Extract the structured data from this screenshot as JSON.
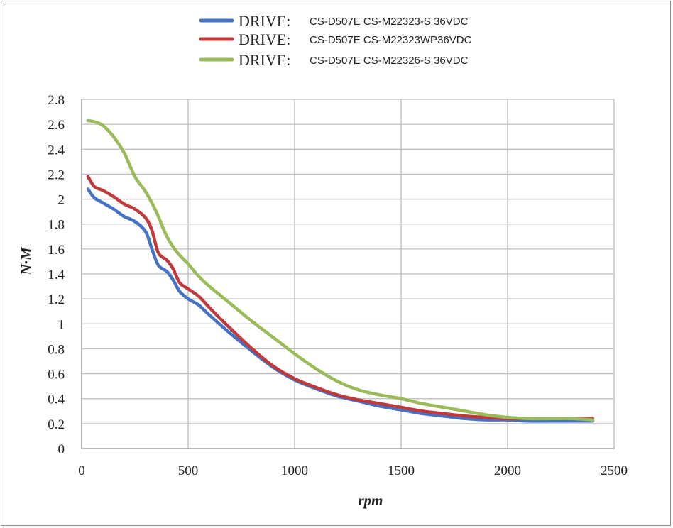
{
  "chart_data": {
    "type": "line",
    "xlabel": "rpm",
    "ylabel": "N·M",
    "xlim": [
      0,
      2500
    ],
    "ylim": [
      0,
      2.8
    ],
    "x_ticks": [
      "0",
      "500",
      "1000",
      "1500",
      "2000",
      "2500"
    ],
    "y_ticks": [
      "0",
      "0.2",
      "0.4",
      "0.6",
      "0.8",
      "1",
      "1.2",
      "1.4",
      "1.6",
      "1.8",
      "2",
      "2.2",
      "2.4",
      "2.6",
      "2.8"
    ],
    "grid": true,
    "legend_position": "top",
    "series": [
      {
        "legend_head": "DRIVE:",
        "legend_rest": "CS-D507E  CS-M22323-S  36VDC",
        "color": "#4472C4",
        "x": [
          30,
          60,
          100,
          150,
          200,
          250,
          300,
          330,
          360,
          400,
          430,
          460,
          500,
          550,
          600,
          700,
          800,
          900,
          1000,
          1100,
          1200,
          1300,
          1400,
          1500,
          1600,
          1700,
          1800,
          1900,
          2000,
          2100,
          2200,
          2300,
          2400
        ],
        "y": [
          2.08,
          2.01,
          1.97,
          1.92,
          1.86,
          1.82,
          1.74,
          1.6,
          1.47,
          1.42,
          1.35,
          1.26,
          1.2,
          1.15,
          1.07,
          0.92,
          0.78,
          0.65,
          0.55,
          0.48,
          0.42,
          0.38,
          0.34,
          0.31,
          0.28,
          0.26,
          0.24,
          0.23,
          0.23,
          0.22,
          0.22,
          0.22,
          0.22
        ]
      },
      {
        "legend_head": "DRIVE:",
        "legend_rest": "CS-D507E CS-M22323WP36VDC",
        "color": "#C0393B",
        "x": [
          30,
          60,
          100,
          150,
          200,
          250,
          300,
          330,
          360,
          400,
          430,
          460,
          500,
          550,
          600,
          700,
          800,
          900,
          1000,
          1100,
          1200,
          1300,
          1400,
          1500,
          1600,
          1700,
          1800,
          1900,
          2000,
          2100,
          2200,
          2300,
          2400
        ],
        "y": [
          2.18,
          2.1,
          2.07,
          2.02,
          1.96,
          1.92,
          1.85,
          1.75,
          1.57,
          1.51,
          1.44,
          1.33,
          1.28,
          1.22,
          1.13,
          0.96,
          0.8,
          0.66,
          0.56,
          0.49,
          0.43,
          0.39,
          0.36,
          0.33,
          0.3,
          0.28,
          0.26,
          0.25,
          0.24,
          0.24,
          0.24,
          0.24,
          0.24
        ]
      },
      {
        "legend_head": "DRIVE:",
        "legend_rest": "CS-D507E  CS-M22326-S  36VDC",
        "color": "#9BBB59",
        "x": [
          30,
          60,
          100,
          150,
          200,
          250,
          300,
          350,
          400,
          450,
          500,
          550,
          600,
          700,
          800,
          900,
          1000,
          1100,
          1200,
          1300,
          1400,
          1500,
          1600,
          1700,
          1800,
          1900,
          2000,
          2100,
          2200,
          2300,
          2400
        ],
        "y": [
          2.63,
          2.62,
          2.59,
          2.5,
          2.37,
          2.18,
          2.06,
          1.9,
          1.7,
          1.57,
          1.48,
          1.38,
          1.3,
          1.16,
          1.02,
          0.89,
          0.76,
          0.64,
          0.54,
          0.47,
          0.43,
          0.4,
          0.36,
          0.33,
          0.3,
          0.27,
          0.25,
          0.24,
          0.24,
          0.24,
          0.23
        ]
      }
    ]
  }
}
